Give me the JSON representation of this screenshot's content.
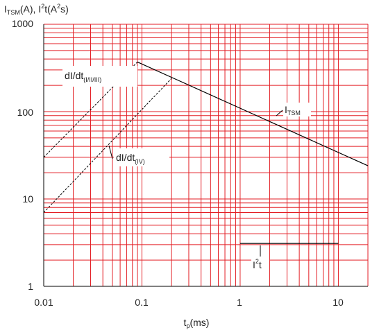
{
  "chart_data": {
    "type": "line",
    "xscale": "log",
    "yscale": "log",
    "xlim": [
      0.01,
      20
    ],
    "ylim": [
      1,
      1000
    ],
    "grid": true,
    "grid_color": "#e31e24",
    "line_color": "#000000",
    "x_ticks": [
      "0.01",
      "0.1",
      "1",
      "10"
    ],
    "y_ticks": [
      "1",
      "10",
      "100",
      "1000"
    ],
    "xlabel": {
      "main": "t",
      "sub": "p",
      "tail": "(ms)"
    },
    "ylabel": {
      "i_main": "I",
      "i_sub": "TSM",
      "mid": "(A), I",
      "sup": "2",
      "tail": "t(A",
      "sup2": "2",
      "tail2": "s)"
    },
    "series": [
      {
        "name": "I_TSM",
        "style": "solid",
        "label": {
          "main": "I",
          "sub": "TSM"
        },
        "x": [
          0.09,
          20
        ],
        "y": [
          370,
          24
        ]
      },
      {
        "name": "dI/dt(I/II/III)",
        "style": "dashed",
        "label": {
          "main": "dI/dt",
          "sub": "(I/II/III)"
        },
        "x": [
          0.01,
          0.09
        ],
        "y": [
          30,
          370
        ]
      },
      {
        "name": "dI/dt(IV)",
        "style": "dashed",
        "label": {
          "main": "dI/dt",
          "sub": "(IV)"
        },
        "x": [
          0.01,
          0.2
        ],
        "y": [
          7,
          240
        ]
      },
      {
        "name": "I2t",
        "style": "solid",
        "label": {
          "main": "I",
          "sup": "2",
          "tail": "t"
        },
        "x": [
          1,
          10
        ],
        "y": [
          3.1,
          3.1
        ]
      }
    ]
  }
}
